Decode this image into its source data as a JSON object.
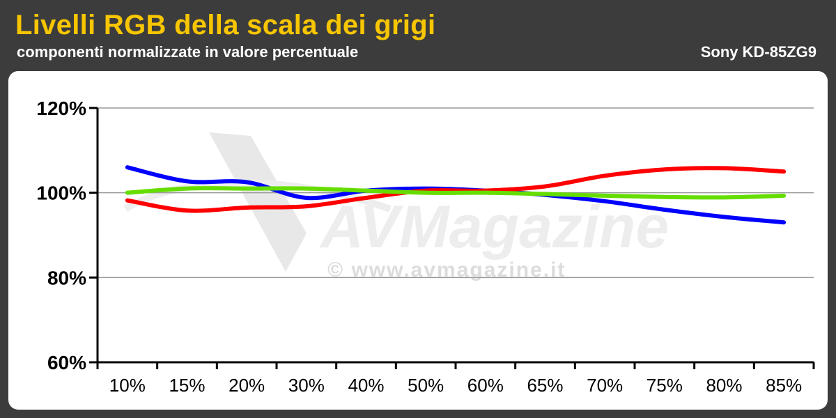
{
  "header": {
    "title": "Livelli RGB della scala dei grigi",
    "subtitle": "componenti normalizzate in valore percentuale",
    "model": "Sony KD-85ZG9"
  },
  "watermark": {
    "text": "© www.avmagazine.it",
    "logo": "AVMagazine"
  },
  "chart_data": {
    "type": "line",
    "categories": [
      "10%",
      "15%",
      "20%",
      "30%",
      "40%",
      "50%",
      "60%",
      "65%",
      "70%",
      "75%",
      "80%",
      "85%"
    ],
    "ylim": [
      60,
      120
    ],
    "yticks": [
      60,
      80,
      100,
      120
    ],
    "ytick_labels": [
      "60%",
      "80%",
      "100%",
      "120%"
    ],
    "grid": true,
    "series": [
      {
        "color": "#0000ff",
        "values": [
          106,
          102.7,
          102.5,
          98.8,
          100.5,
          101,
          100.5,
          99.5,
          98,
          96,
          94.3,
          93
        ]
      },
      {
        "color": "#ff0000",
        "values": [
          98.2,
          95.8,
          96.5,
          96.8,
          98.8,
          100.5,
          100.5,
          101.5,
          104,
          105.5,
          105.8,
          105
        ]
      },
      {
        "color": "#66dd00",
        "values": [
          100,
          101,
          101,
          101,
          100.5,
          100,
          100,
          99.7,
          99.3,
          99,
          98.9,
          99.3
        ]
      }
    ]
  }
}
